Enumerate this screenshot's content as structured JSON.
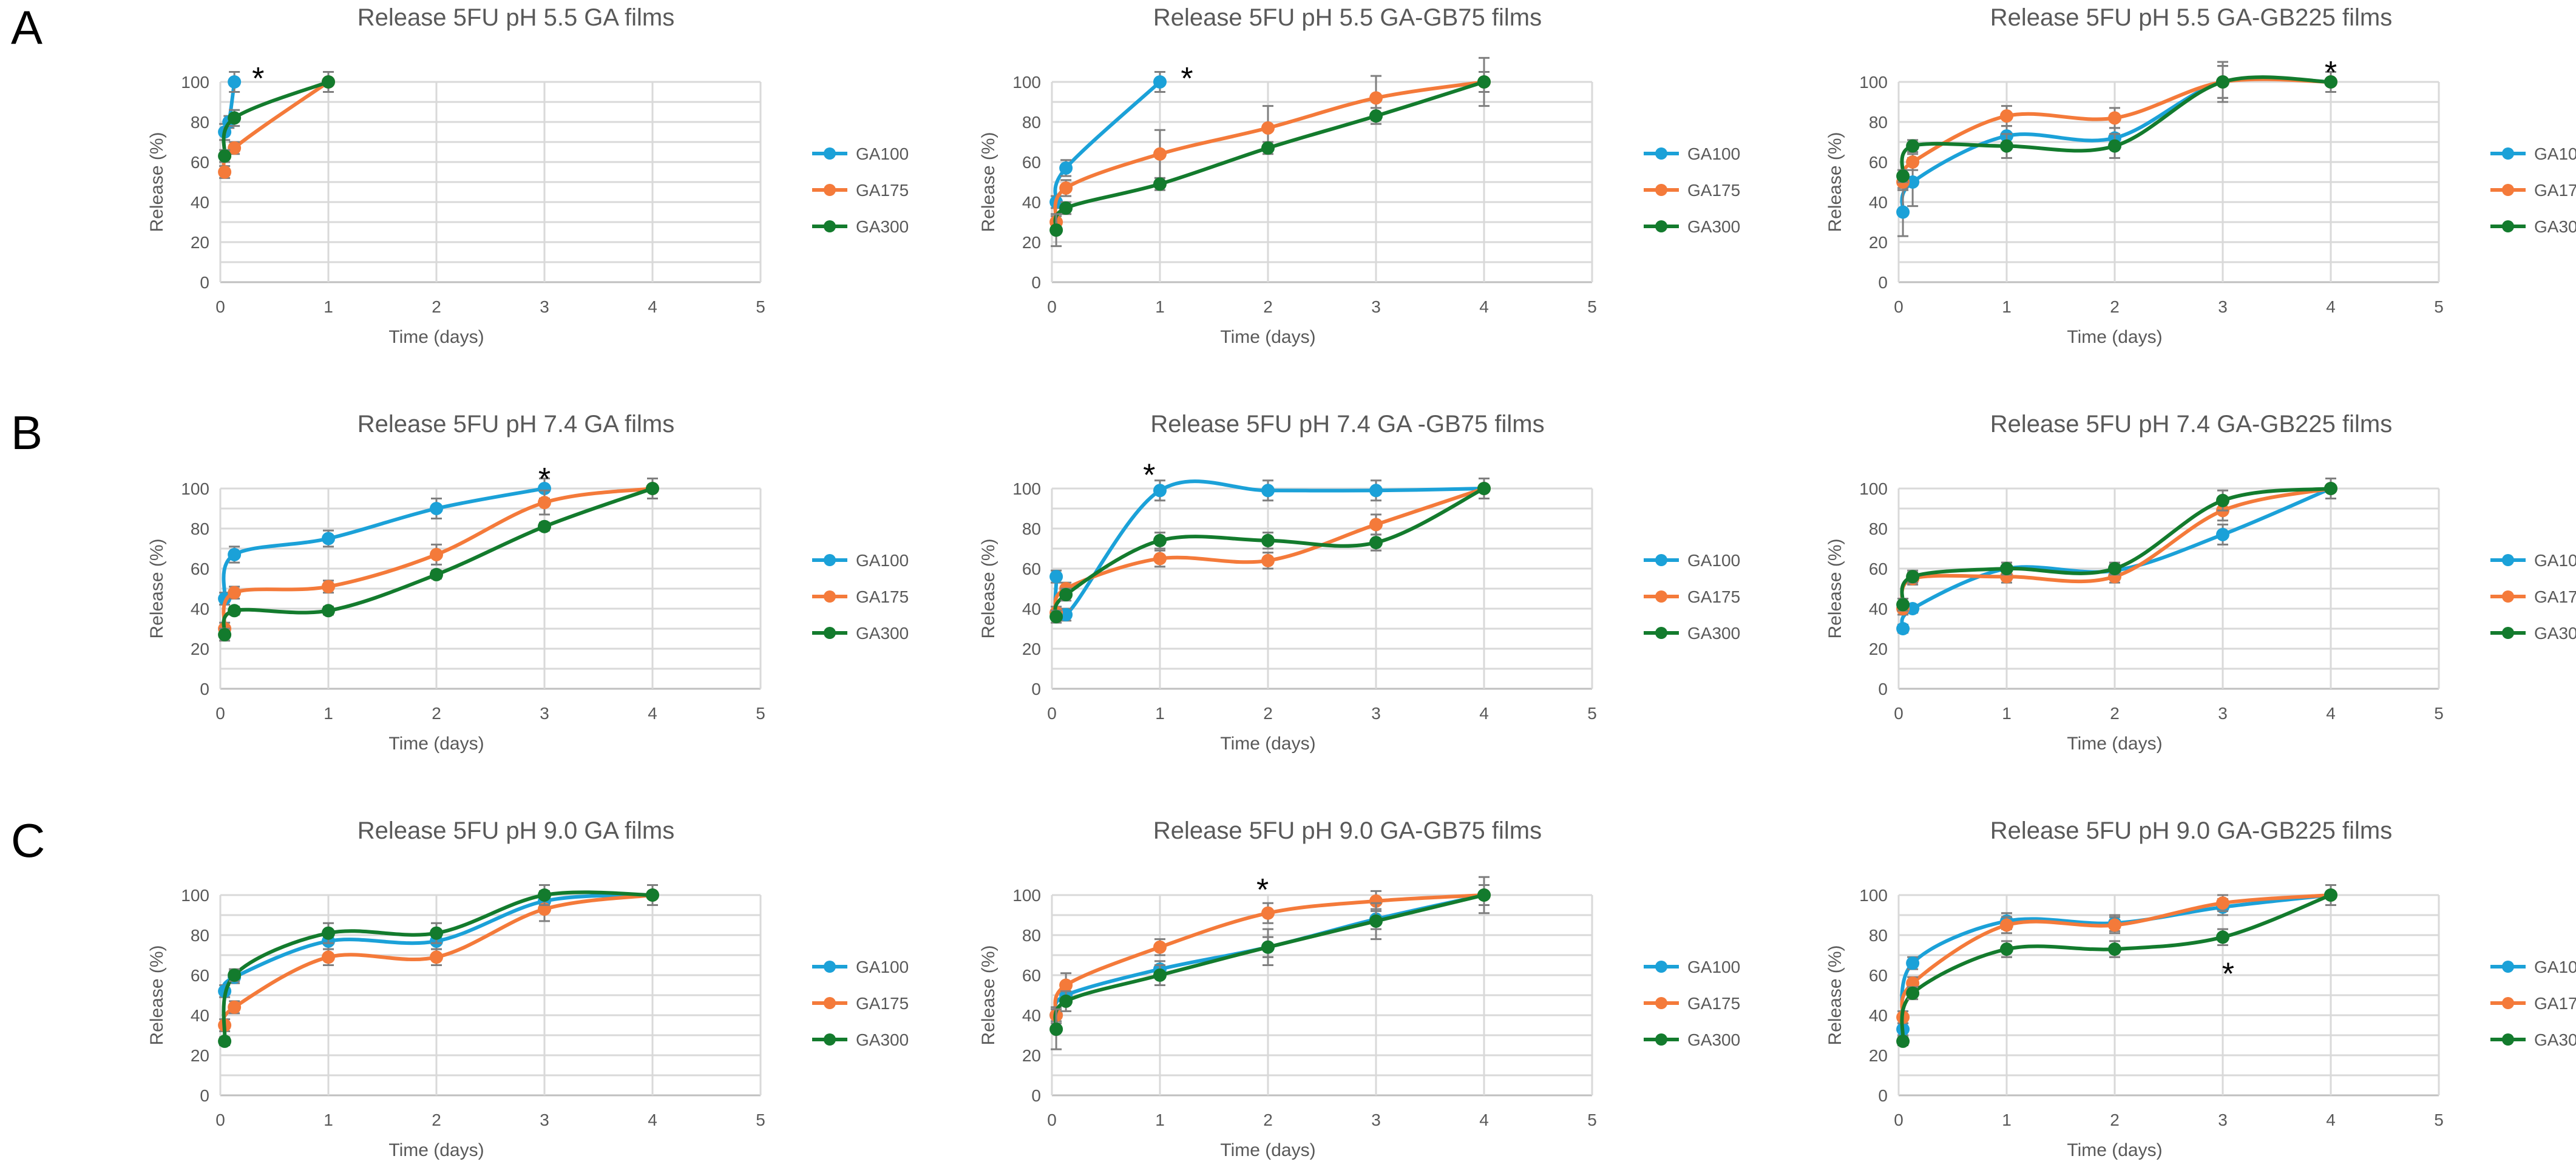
{
  "row_labels": [
    "A",
    "B",
    "C"
  ],
  "legend": {
    "GA100": "GA100",
    "GA175": "GA175",
    "GA300": "GA300"
  },
  "colors": {
    "GA100": "#1ba1d8",
    "GA175": "#f47a3a",
    "GA300": "#137b2d"
  },
  "chart_data": [
    {
      "type": "line",
      "row": 0,
      "col": 0,
      "title": "Release 5FU pH 5.5 GA films",
      "xlabel": "Time (days)",
      "ylabel": "Release (%)",
      "xlim": [
        0,
        5
      ],
      "ylim": [
        0,
        100
      ],
      "xticks": [
        0,
        1,
        2,
        3,
        4,
        5
      ],
      "yticks": [
        0,
        10,
        20,
        30,
        40,
        50,
        60,
        70,
        80,
        90,
        100
      ],
      "annotations": [
        {
          "text": "*",
          "x": 0.35,
          "y": 103
        }
      ],
      "series": [
        {
          "name": "GA100",
          "x": [
            0.04,
            0.08,
            0.13
          ],
          "y": [
            75,
            80,
            100
          ],
          "err": [
            4,
            3,
            5
          ]
        },
        {
          "name": "GA175",
          "x": [
            0.04,
            0.13,
            1
          ],
          "y": [
            55,
            67,
            100
          ],
          "err": [
            3,
            3,
            5
          ]
        },
        {
          "name": "GA300",
          "x": [
            0.04,
            0.13,
            1
          ],
          "y": [
            63,
            82,
            100
          ],
          "err": [
            3,
            4,
            5
          ]
        }
      ]
    },
    {
      "type": "line",
      "row": 0,
      "col": 1,
      "title": "Release 5FU pH 5.5  GA-GB75 films",
      "xlabel": "Time (days)",
      "ylabel": "Release (%)",
      "xlim": [
        0,
        5
      ],
      "ylim": [
        0,
        100
      ],
      "xticks": [
        0,
        1,
        2,
        3,
        4,
        5
      ],
      "yticks": [
        0,
        10,
        20,
        30,
        40,
        50,
        60,
        70,
        80,
        90,
        100
      ],
      "annotations": [
        {
          "text": "*",
          "x": 1.25,
          "y": 103
        }
      ],
      "series": [
        {
          "name": "GA100",
          "x": [
            0.04,
            0.13,
            1
          ],
          "y": [
            40,
            57,
            100
          ],
          "err": [
            3,
            4,
            5
          ]
        },
        {
          "name": "GA175",
          "x": [
            0.04,
            0.13,
            1,
            2,
            3,
            4
          ],
          "y": [
            30,
            47,
            64,
            77,
            92,
            100
          ],
          "err": [
            3,
            4,
            12,
            11,
            11,
            5
          ]
        },
        {
          "name": "GA300",
          "x": [
            0.04,
            0.13,
            1,
            2,
            3,
            4
          ],
          "y": [
            26,
            37,
            49,
            67,
            83,
            100
          ],
          "err": [
            8,
            3,
            3,
            3,
            4,
            12
          ]
        }
      ]
    },
    {
      "type": "line",
      "row": 0,
      "col": 2,
      "title": "Release 5FU pH 5.5  GA-GB225 films",
      "xlabel": "Time (days)",
      "ylabel": "Release (%)",
      "xlim": [
        0,
        5
      ],
      "ylim": [
        0,
        100
      ],
      "xticks": [
        0,
        1,
        2,
        3,
        4,
        5
      ],
      "yticks": [
        0,
        10,
        20,
        30,
        40,
        50,
        60,
        70,
        80,
        90,
        100
      ],
      "annotations": [
        {
          "text": "*",
          "x": 4,
          "y": 106
        }
      ],
      "series": [
        {
          "name": "GA100",
          "x": [
            0.04,
            0.13,
            1,
            2,
            3,
            4
          ],
          "y": [
            35,
            50,
            73,
            72,
            100,
            100
          ],
          "err": [
            12,
            12,
            5,
            5,
            8,
            5
          ]
        },
        {
          "name": "GA175",
          "x": [
            0.04,
            0.13,
            1,
            2,
            3,
            4
          ],
          "y": [
            50,
            60,
            83,
            82,
            100,
            100
          ],
          "err": [
            4,
            4,
            5,
            5,
            8,
            5
          ]
        },
        {
          "name": "GA300",
          "x": [
            0.04,
            0.13,
            1,
            2,
            3,
            4
          ],
          "y": [
            53,
            68,
            68,
            68,
            100,
            100
          ],
          "err": [
            3,
            3,
            6,
            6,
            10,
            5
          ]
        }
      ]
    },
    {
      "type": "line",
      "row": 1,
      "col": 0,
      "title": "Release 5FU pH 7.4 GA films",
      "xlabel": "Time (days)",
      "ylabel": "Release (%)",
      "xlim": [
        0,
        5
      ],
      "ylim": [
        0,
        100
      ],
      "xticks": [
        0,
        1,
        2,
        3,
        4,
        5
      ],
      "yticks": [
        0,
        10,
        20,
        30,
        40,
        50,
        60,
        70,
        80,
        90,
        100
      ],
      "annotations": [
        {
          "text": "*",
          "x": 3,
          "y": 106
        }
      ],
      "series": [
        {
          "name": "GA100",
          "x": [
            0.04,
            0.13,
            1,
            2,
            3
          ],
          "y": [
            45,
            67,
            75,
            90,
            100
          ],
          "err": [
            3,
            4,
            4,
            5,
            5
          ]
        },
        {
          "name": "GA175",
          "x": [
            0.04,
            0.13,
            1,
            2,
            3,
            4
          ],
          "y": [
            30,
            48,
            51,
            67,
            93,
            100
          ],
          "err": [
            3,
            3,
            3,
            5,
            6,
            5
          ]
        },
        {
          "name": "GA300",
          "x": [
            0.04,
            0.13,
            1,
            2,
            3,
            4
          ],
          "y": [
            27,
            39,
            39,
            57,
            81,
            100
          ],
          "err": [
            3,
            2,
            2,
            2,
            2,
            5
          ]
        }
      ]
    },
    {
      "type": "line",
      "row": 1,
      "col": 1,
      "title": "Release 5FU pH 7.4 GA -GB75 films",
      "xlabel": "Time (days)",
      "ylabel": "Release (%)",
      "xlim": [
        0,
        5
      ],
      "ylim": [
        0,
        100
      ],
      "xticks": [
        0,
        1,
        2,
        3,
        4,
        5
      ],
      "yticks": [
        0,
        10,
        20,
        30,
        40,
        50,
        60,
        70,
        80,
        90,
        100
      ],
      "annotations": [
        {
          "text": "*",
          "x": 0.9,
          "y": 108
        }
      ],
      "series": [
        {
          "name": "GA100",
          "x": [
            0.04,
            0.13,
            1,
            2,
            3,
            4
          ],
          "y": [
            56,
            37,
            99,
            99,
            99,
            100
          ],
          "err": [
            3,
            3,
            5,
            5,
            5,
            5
          ]
        },
        {
          "name": "GA175",
          "x": [
            0.04,
            0.13,
            1,
            2,
            3,
            4
          ],
          "y": [
            38,
            50,
            65,
            64,
            82,
            100
          ],
          "err": [
            3,
            3,
            4,
            4,
            5,
            5
          ]
        },
        {
          "name": "GA300",
          "x": [
            0.04,
            0.13,
            1,
            2,
            3,
            4
          ],
          "y": [
            36,
            47,
            74,
            74,
            73,
            100
          ],
          "err": [
            3,
            3,
            4,
            4,
            4,
            5
          ]
        }
      ]
    },
    {
      "type": "line",
      "row": 1,
      "col": 2,
      "title": "Release 5FU pH 7.4  GA-GB225 films",
      "xlabel": "Time (days)",
      "ylabel": "Release (%)",
      "xlim": [
        0,
        5
      ],
      "ylim": [
        0,
        100
      ],
      "xticks": [
        0,
        1,
        2,
        3,
        4,
        5
      ],
      "yticks": [
        0,
        10,
        20,
        30,
        40,
        50,
        60,
        70,
        80,
        90,
        100
      ],
      "annotations": [],
      "series": [
        {
          "name": "GA100",
          "x": [
            0.04,
            0.13,
            1,
            2,
            3,
            4
          ],
          "y": [
            30,
            40,
            60,
            59,
            77,
            100
          ],
          "err": [
            2,
            2,
            3,
            3,
            5,
            5
          ]
        },
        {
          "name": "GA175",
          "x": [
            0.04,
            0.13,
            1,
            2,
            3,
            4
          ],
          "y": [
            40,
            55,
            56,
            56,
            89,
            100
          ],
          "err": [
            3,
            3,
            3,
            3,
            5,
            5
          ]
        },
        {
          "name": "GA300",
          "x": [
            0.04,
            0.13,
            1,
            2,
            3,
            4
          ],
          "y": [
            42,
            56,
            60,
            60,
            94,
            100
          ],
          "err": [
            3,
            3,
            3,
            3,
            5,
            5
          ]
        }
      ]
    },
    {
      "type": "line",
      "row": 2,
      "col": 0,
      "title": "Release 5FU pH 9.0 GA films",
      "xlabel": "Time  (days)",
      "ylabel": "Release (%)",
      "xlim": [
        0,
        5
      ],
      "ylim": [
        0,
        100
      ],
      "xticks": [
        0,
        1,
        2,
        3,
        4,
        5
      ],
      "yticks": [
        0,
        10,
        20,
        30,
        40,
        50,
        60,
        70,
        80,
        90,
        100
      ],
      "annotations": [],
      "series": [
        {
          "name": "GA100",
          "x": [
            0.04,
            0.13,
            1,
            2,
            3,
            4
          ],
          "y": [
            52,
            59,
            77,
            77,
            97,
            100
          ],
          "err": [
            3,
            3,
            4,
            4,
            5,
            5
          ]
        },
        {
          "name": "GA175",
          "x": [
            0.04,
            0.13,
            1,
            2,
            3,
            4
          ],
          "y": [
            35,
            44,
            69,
            69,
            93,
            100
          ],
          "err": [
            3,
            3,
            4,
            4,
            6,
            5
          ]
        },
        {
          "name": "GA300",
          "x": [
            0.04,
            0.13,
            1,
            2,
            3,
            4
          ],
          "y": [
            27,
            60,
            81,
            81,
            100,
            100
          ],
          "err": [
            2,
            3,
            5,
            5,
            5,
            5
          ]
        }
      ]
    },
    {
      "type": "line",
      "row": 2,
      "col": 1,
      "title": "Release 5FU pH 9.0  GA-GB75 films",
      "xlabel": "Time (days)",
      "ylabel": "Release (%)",
      "xlim": [
        0,
        5
      ],
      "ylim": [
        0,
        100
      ],
      "xticks": [
        0,
        1,
        2,
        3,
        4,
        5
      ],
      "yticks": [
        0,
        10,
        20,
        30,
        40,
        50,
        60,
        70,
        80,
        90,
        100
      ],
      "annotations": [
        {
          "text": "*",
          "x": 1.95,
          "y": 104
        }
      ],
      "series": [
        {
          "name": "GA100",
          "x": [
            0.04,
            0.13,
            1,
            2,
            3,
            4
          ],
          "y": [
            40,
            50,
            63,
            74,
            88,
            100
          ],
          "err": [
            3,
            4,
            4,
            5,
            5,
            5
          ]
        },
        {
          "name": "GA175",
          "x": [
            0.04,
            0.13,
            1,
            2,
            3,
            4
          ],
          "y": [
            40,
            55,
            74,
            91,
            97,
            100
          ],
          "err": [
            4,
            6,
            4,
            5,
            5,
            5
          ]
        },
        {
          "name": "GA300",
          "x": [
            0.04,
            0.13,
            1,
            2,
            3,
            4
          ],
          "y": [
            33,
            47,
            60,
            74,
            87,
            100
          ],
          "err": [
            10,
            5,
            5,
            9,
            9,
            9
          ]
        }
      ]
    },
    {
      "type": "line",
      "row": 2,
      "col": 2,
      "title": "Release 5FU pH 9.0   GA-GB225 films",
      "xlabel": "Time (days)",
      "ylabel": "Release (%)",
      "xlim": [
        0,
        5
      ],
      "ylim": [
        0,
        100
      ],
      "xticks": [
        0,
        1,
        2,
        3,
        4,
        5
      ],
      "yticks": [
        0,
        10,
        20,
        30,
        40,
        50,
        60,
        70,
        80,
        90,
        100
      ],
      "annotations": [
        {
          "text": "*",
          "x": 3.05,
          "y": 62
        }
      ],
      "series": [
        {
          "name": "GA100",
          "x": [
            0.04,
            0.13,
            1,
            2,
            3,
            4
          ],
          "y": [
            33,
            66,
            87,
            86,
            94,
            100
          ],
          "err": [
            3,
            3,
            4,
            4,
            4,
            5
          ]
        },
        {
          "name": "GA175",
          "x": [
            0.04,
            0.13,
            1,
            2,
            3,
            4
          ],
          "y": [
            39,
            56,
            85,
            85,
            96,
            100
          ],
          "err": [
            3,
            3,
            4,
            4,
            4,
            5
          ]
        },
        {
          "name": "GA300",
          "x": [
            0.04,
            0.13,
            1,
            2,
            3,
            4
          ],
          "y": [
            27,
            51,
            73,
            73,
            79,
            100
          ],
          "err": [
            2,
            3,
            4,
            4,
            4,
            5
          ]
        }
      ]
    }
  ]
}
